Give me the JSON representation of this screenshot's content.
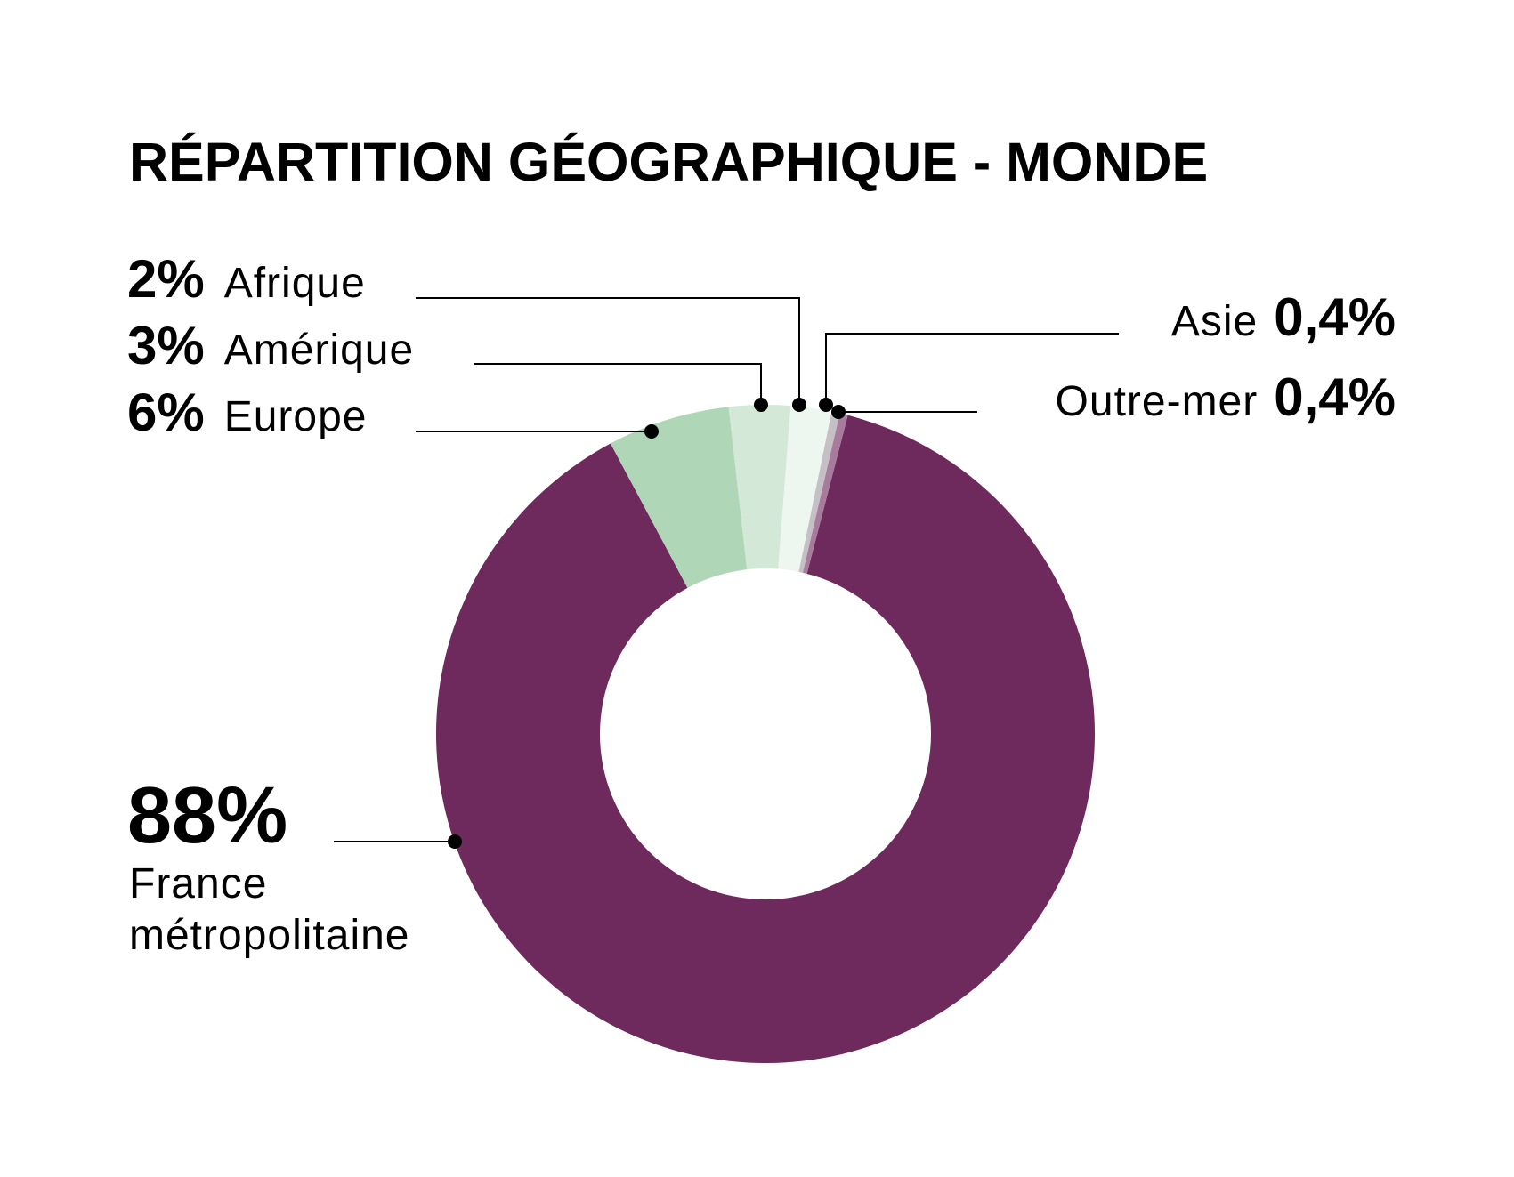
{
  "chart_data": {
    "type": "pie",
    "title": "RÉPARTITION GÉOGRAPHIQUE - MONDE",
    "slices": [
      {
        "label": "France métropolitaine",
        "label_lines": [
          "France",
          "métropolitaine"
        ],
        "value": 88,
        "value_label": "88%",
        "color": "#6e2a5c"
      },
      {
        "label": "Europe",
        "value": 6,
        "value_label": "6%",
        "color": "#b0d6b8"
      },
      {
        "label": "Amérique",
        "value": 3,
        "value_label": "3%",
        "color": "#d3e8d6"
      },
      {
        "label": "Afrique",
        "value": 2,
        "value_label": "2%",
        "color": "#eef6f0"
      },
      {
        "label": "Asie",
        "value": 0.4,
        "value_label": "0,4%",
        "color": "#c4c0c4"
      },
      {
        "label": "Outre-mer",
        "value": 0.4,
        "value_label": "0,4%",
        "color": "#a87a9c"
      }
    ]
  }
}
